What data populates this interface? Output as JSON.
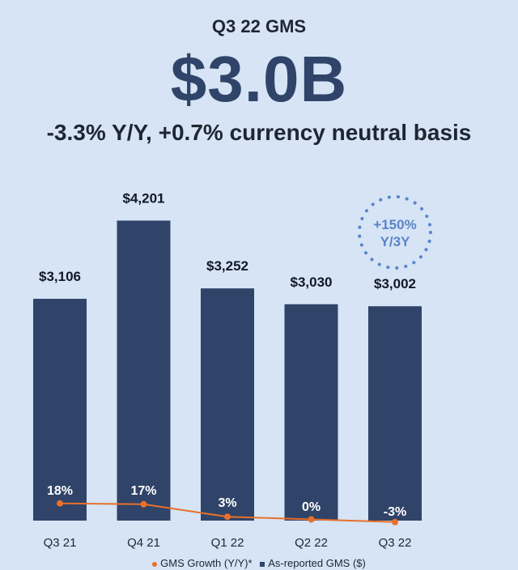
{
  "header": {
    "subtitle": "Q3 22 GMS",
    "value": "$3.0B",
    "headline": "-3.3% Y/Y, +0.7% currency neutral basis"
  },
  "badge": {
    "line1": "+150%",
    "line2": "Y/3Y"
  },
  "colors": {
    "bar": "#2f4468",
    "line": "#e8702a",
    "badge": "#5b84c8"
  },
  "chart_data": {
    "type": "bar",
    "categories": [
      "Q3 21",
      "Q4 21",
      "Q1 22",
      "Q2 22",
      "Q3 22"
    ],
    "series": [
      {
        "name": "As-reported GMS ($)",
        "values": [
          3106,
          4201,
          3252,
          3030,
          3002
        ],
        "labels": [
          "$3,106",
          "$4,201",
          "$3,252",
          "$3,030",
          "$3,002"
        ]
      },
      {
        "name": "GMS Growth (Y/Y)*",
        "type": "line",
        "values": [
          18,
          17,
          3,
          0,
          -3
        ],
        "labels": [
          "18%",
          "17%",
          "3%",
          "0%",
          "-3%"
        ]
      }
    ],
    "legend": [
      "GMS Growth (Y/Y)*",
      "As-reported GMS ($)"
    ],
    "legend_position": "bottom"
  }
}
